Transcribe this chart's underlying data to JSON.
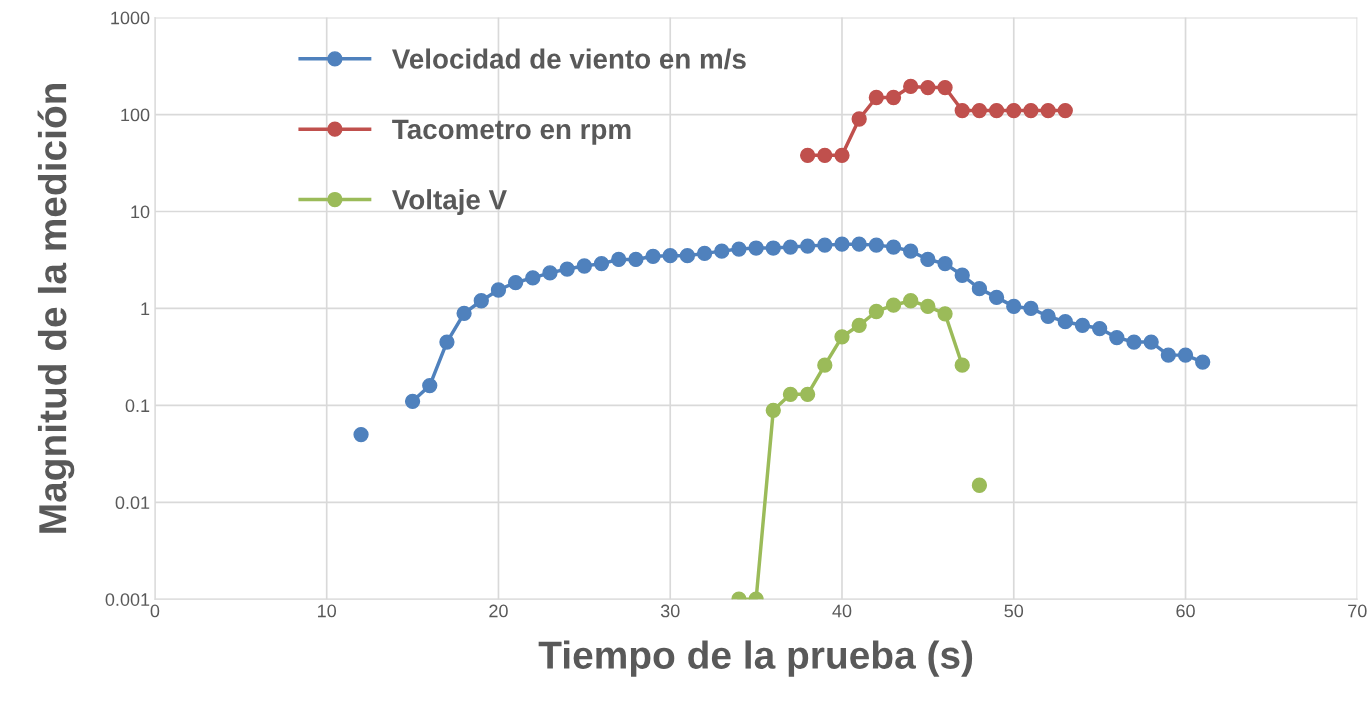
{
  "chart_data": {
    "type": "line",
    "xlabel": "Tiempo de la prueba (s)",
    "ylabel": "Magnitud de la medición",
    "xlim": [
      0,
      70
    ],
    "xticks": [
      0,
      10,
      20,
      30,
      40,
      50,
      60,
      70
    ],
    "ylim": [
      0.001,
      1000
    ],
    "yticks": [
      0.001,
      0.01,
      0.1,
      1,
      10,
      100,
      1000
    ],
    "log": "y",
    "grid": true,
    "legend": "top left",
    "marker": "circle",
    "line_style": "solid",
    "series": [
      {
        "name": "Velocidad de viento en m/s",
        "color": "#4f81bd",
        "x": [
          12,
          13,
          14,
          15,
          16,
          17,
          18,
          19,
          20,
          21,
          22,
          23,
          24,
          25,
          26,
          27,
          28,
          29,
          30,
          31,
          32,
          33,
          34,
          35,
          36,
          37,
          38,
          39,
          40,
          41,
          42,
          43,
          44,
          45,
          46,
          47,
          48,
          49,
          50,
          51,
          52,
          53,
          54,
          55,
          56,
          57,
          58,
          59,
          60,
          61
        ],
        "values": [
          0.05,
          null,
          null,
          0.11,
          0.16,
          0.45,
          0.89,
          1.2,
          1.55,
          1.85,
          2.07,
          2.33,
          2.55,
          2.74,
          2.9,
          3.2,
          3.2,
          3.45,
          3.5,
          3.5,
          3.7,
          3.9,
          4.1,
          4.2,
          4.2,
          4.3,
          4.4,
          4.5,
          4.6,
          4.6,
          4.5,
          4.3,
          3.9,
          3.2,
          2.9,
          2.2,
          1.6,
          1.3,
          1.05,
          1.0,
          0.83,
          0.73,
          0.67,
          0.62,
          0.5,
          0.45,
          0.45,
          0.33,
          0.33,
          0.28
        ]
      },
      {
        "name": "Tacometro en rpm",
        "color": "#c0504d",
        "x": [
          38,
          39,
          40,
          41,
          42,
          43,
          44,
          45,
          46,
          47,
          48,
          49,
          50,
          51,
          52,
          53
        ],
        "values": [
          38,
          38,
          38,
          90,
          150,
          150,
          195,
          190,
          190,
          110,
          110,
          110,
          110,
          110,
          110,
          110
        ]
      },
      {
        "name": "Voltaje V",
        "color": "#9bbb59",
        "x": [
          34,
          35,
          36,
          37,
          38,
          39,
          40,
          41,
          42,
          43,
          44,
          45,
          46,
          47
        ],
        "values": [
          0.001,
          0.001,
          0.089,
          0.13,
          0.13,
          0.26,
          0.51,
          0.67,
          0.93,
          1.08,
          1.2,
          1.05,
          0.88,
          0.26
        ]
      },
      {
        "type": "scatter",
        "color": "#9bbb59",
        "x": [
          48
        ],
        "values": [
          0.015
        ]
      }
    ]
  }
}
